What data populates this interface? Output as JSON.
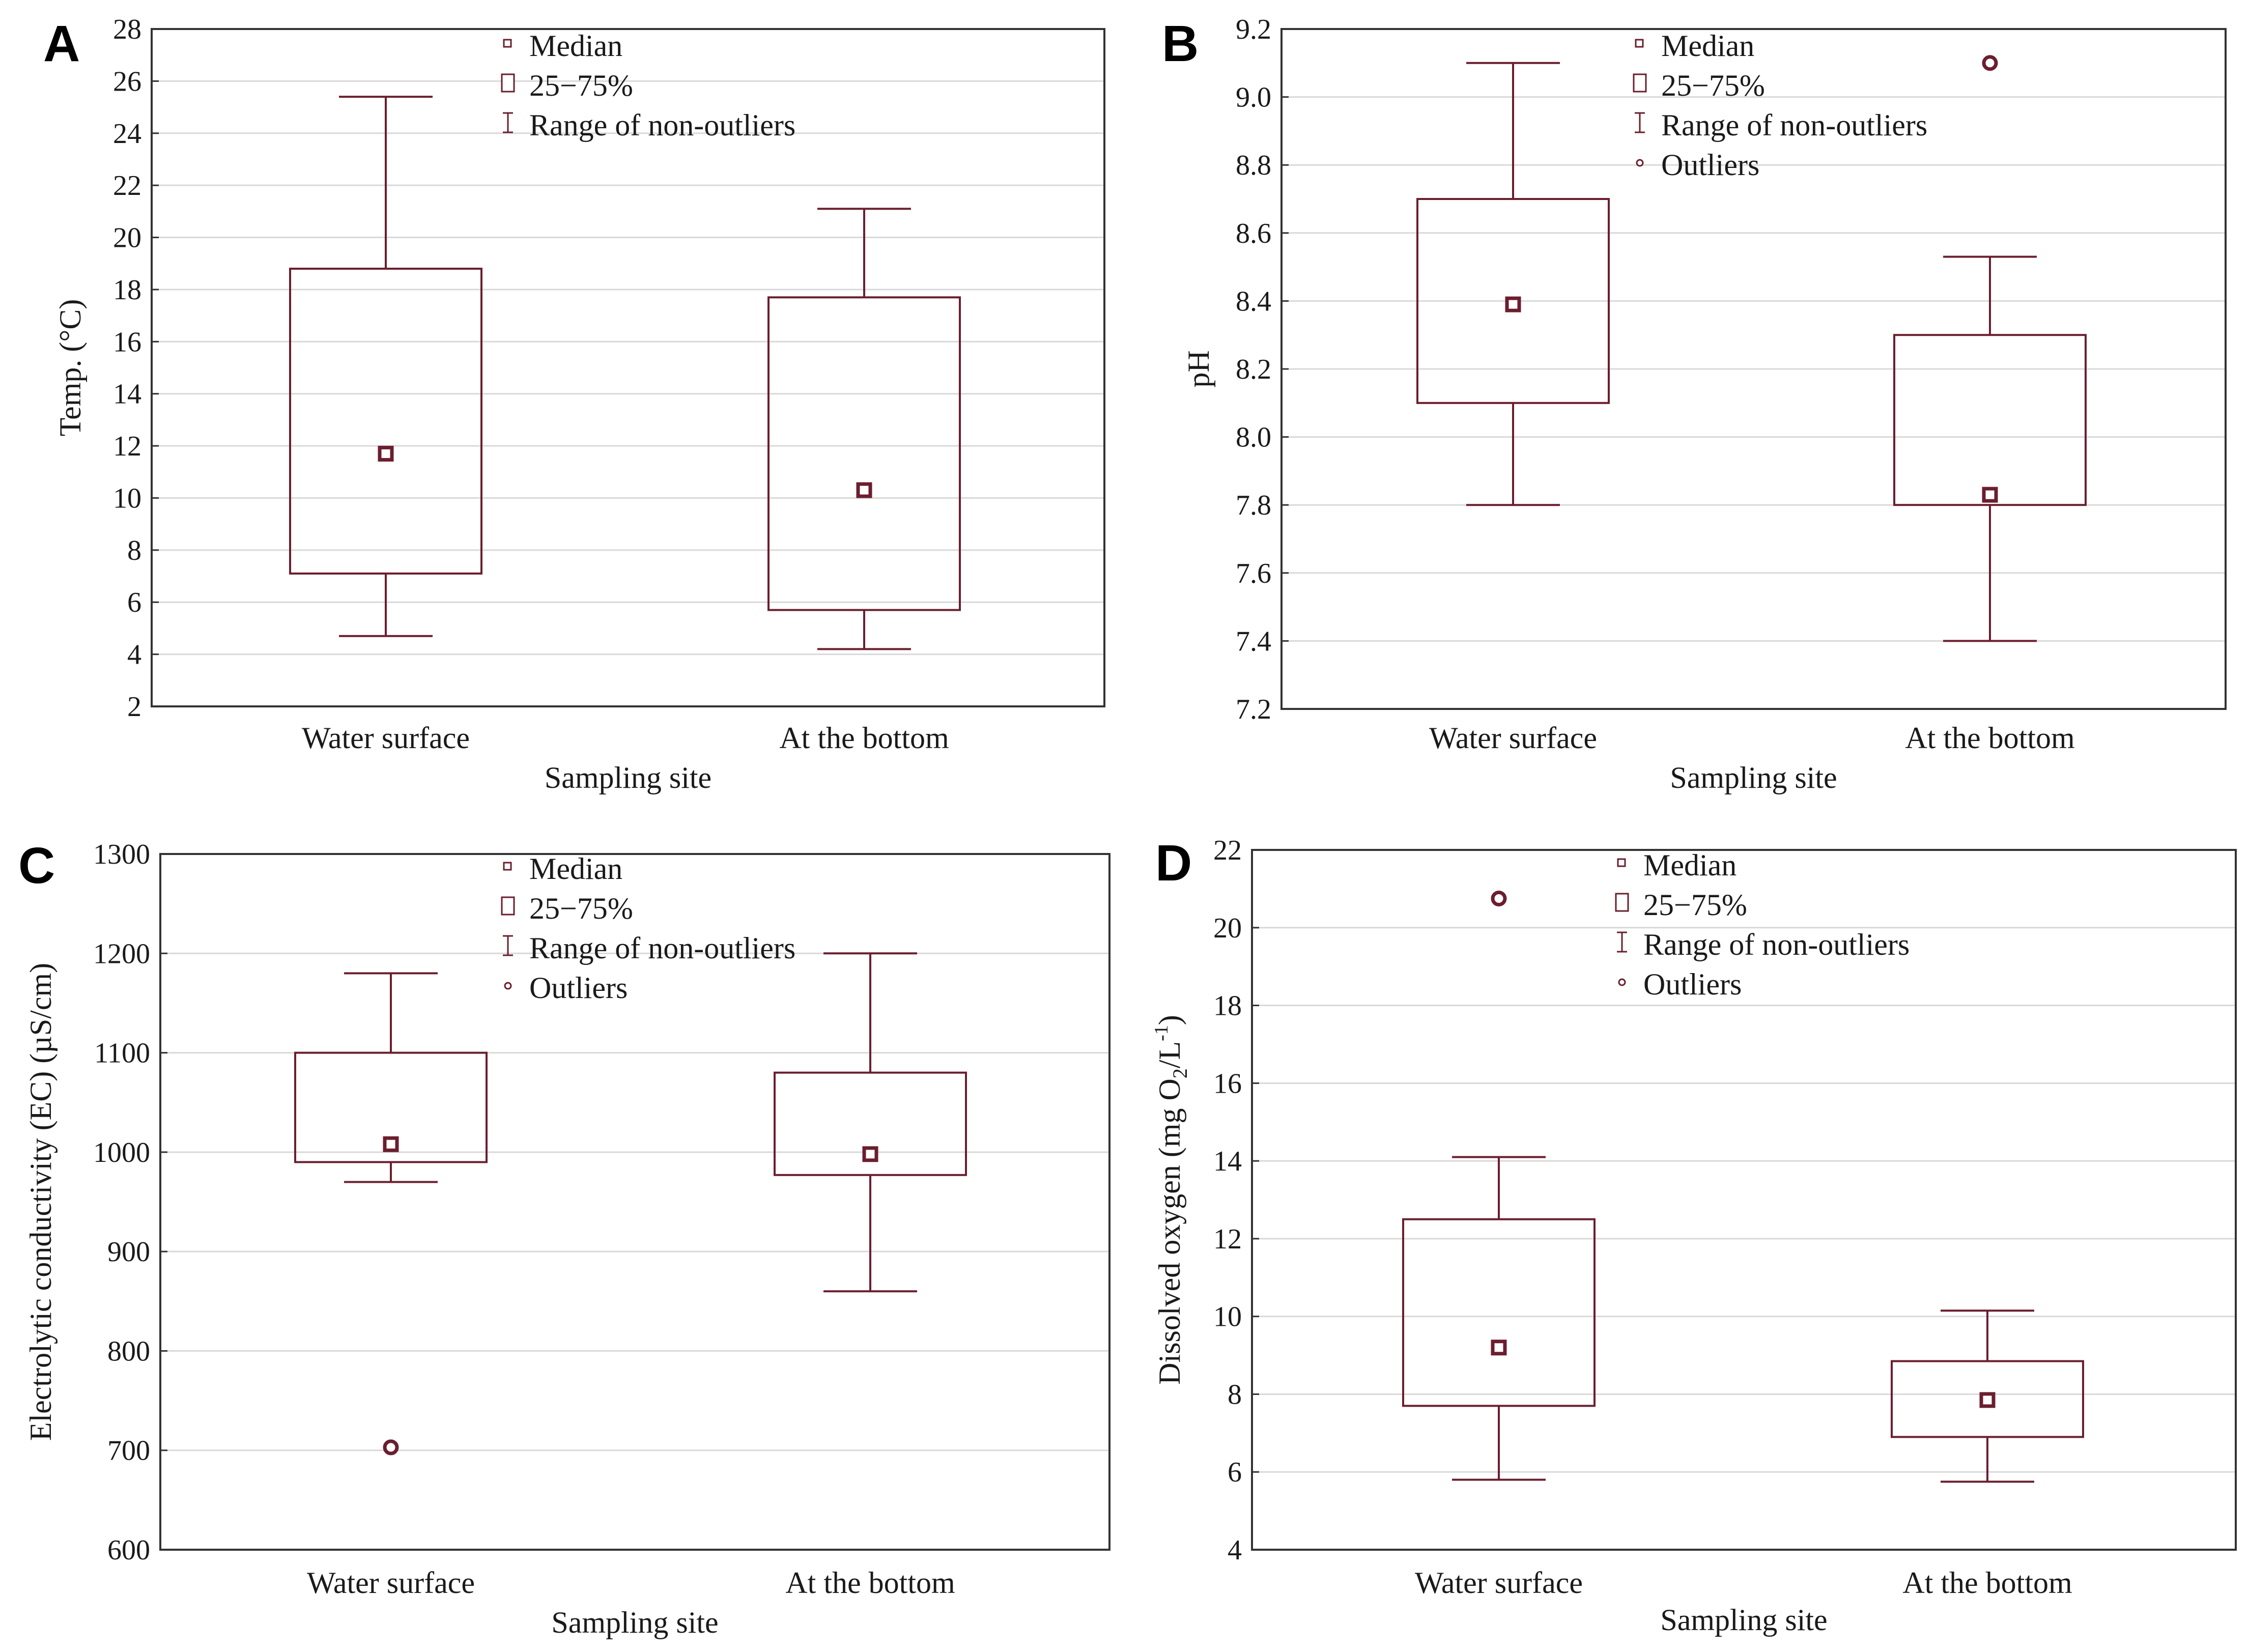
{
  "colors": {
    "series": "#6b1e2e",
    "frame": "#333333",
    "grid": "#d9d9d9",
    "text": "#1a1a1a"
  },
  "chart_data": [
    {
      "panel": "A",
      "type": "box",
      "title": "",
      "xlabel": "Sampling site",
      "ylabel": "Temp. (°C)",
      "ylim": [
        2,
        28
      ],
      "yticks": [
        2,
        4,
        6,
        8,
        10,
        12,
        14,
        16,
        18,
        20,
        22,
        24,
        26,
        28
      ],
      "grid": true,
      "categories": [
        "Water surface",
        "At the bottom"
      ],
      "boxes": [
        {
          "median": 11.7,
          "q1": 7.1,
          "q3": 18.8,
          "whisker_low": 4.7,
          "whisker_high": 25.4,
          "outliers": []
        },
        {
          "median": 10.3,
          "q1": 5.7,
          "q3": 17.7,
          "whisker_low": 4.2,
          "whisker_high": 21.1,
          "outliers": []
        }
      ],
      "legend": [
        "Median",
        "25−75%",
        "Range of non-outliers"
      ],
      "legend_position": "top-center"
    },
    {
      "panel": "B",
      "type": "box",
      "title": "",
      "xlabel": "Sampling site",
      "ylabel": "pH",
      "ylim": [
        7.2,
        9.2
      ],
      "yticks": [
        7.2,
        7.4,
        7.6,
        7.8,
        8.0,
        8.2,
        8.4,
        8.6,
        8.8,
        9.0,
        9.2
      ],
      "tick_decimals": 1,
      "grid": true,
      "categories": [
        "Water surface",
        "At the bottom"
      ],
      "boxes": [
        {
          "median": 8.39,
          "q1": 8.1,
          "q3": 8.7,
          "whisker_low": 7.8,
          "whisker_high": 9.1,
          "outliers": []
        },
        {
          "median": 7.83,
          "q1": 7.8,
          "q3": 8.3,
          "whisker_low": 7.4,
          "whisker_high": 8.53,
          "outliers": [
            9.1
          ]
        }
      ],
      "legend": [
        "Median",
        "25−75%",
        "Range of non-outliers",
        "Outliers"
      ],
      "legend_position": "top-center"
    },
    {
      "panel": "C",
      "type": "box",
      "title": "",
      "xlabel": "Sampling site",
      "ylabel": "Electrolytic conductivity (EC) (µS/cm)",
      "ylim": [
        600,
        1300
      ],
      "yticks": [
        600,
        700,
        800,
        900,
        1000,
        1100,
        1200,
        1300
      ],
      "grid": true,
      "categories": [
        "Water surface",
        "At the bottom"
      ],
      "boxes": [
        {
          "median": 1008,
          "q1": 990,
          "q3": 1100,
          "whisker_low": 970,
          "whisker_high": 1180,
          "outliers": [
            703
          ]
        },
        {
          "median": 998,
          "q1": 977,
          "q3": 1080,
          "whisker_low": 860,
          "whisker_high": 1200,
          "outliers": []
        }
      ],
      "legend": [
        "Median",
        "25−75%",
        "Range of non-outliers",
        "Outliers"
      ],
      "legend_position": "top-center"
    },
    {
      "panel": "D",
      "type": "box",
      "title": "",
      "xlabel": "Sampling site",
      "ylabel_parts": [
        "Dissolved oxygen (mg O",
        "2",
        "/L",
        "-1",
        ")"
      ],
      "ylim": [
        4,
        22
      ],
      "yticks": [
        4,
        6,
        8,
        10,
        12,
        14,
        16,
        18,
        20,
        22
      ],
      "grid": true,
      "categories": [
        "Water surface",
        "At the bottom"
      ],
      "boxes": [
        {
          "median": 9.2,
          "q1": 7.7,
          "q3": 12.5,
          "whisker_low": 5.8,
          "whisker_high": 14.1,
          "outliers": [
            20.75
          ]
        },
        {
          "median": 7.85,
          "q1": 6.9,
          "q3": 8.85,
          "whisker_low": 5.75,
          "whisker_high": 10.15,
          "outliers": []
        }
      ],
      "legend": [
        "Median",
        "25−75%",
        "Range of non-outliers",
        "Outliers"
      ],
      "legend_position": "top-center"
    }
  ]
}
